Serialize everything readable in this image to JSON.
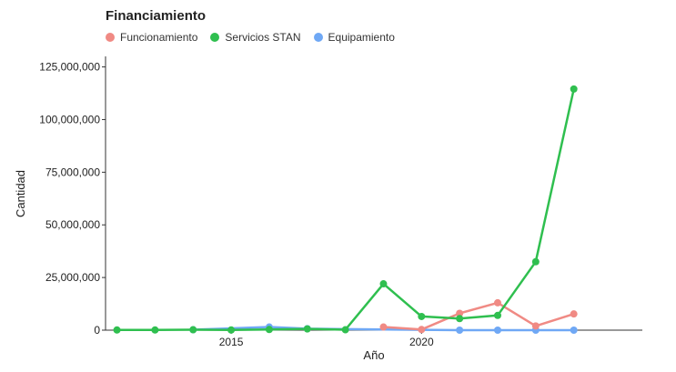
{
  "chart_data": {
    "type": "line",
    "title": "Financiamiento",
    "xlabel": "Año",
    "ylabel": "Cantidad",
    "xlim": [
      2011.7,
      2025.8
    ],
    "ylim": [
      0,
      130000000
    ],
    "x_ticks": [
      2015,
      2020
    ],
    "y_ticks": [
      0,
      25000000,
      50000000,
      75000000,
      100000000,
      125000000
    ],
    "y_tick_labels": [
      "0",
      "25,000,000",
      "50,000,000",
      "75,000,000",
      "100,000,000",
      "125,000,000"
    ],
    "grid": false,
    "legend_position": "top-left",
    "series": [
      {
        "name": "Funcionamiento",
        "color": "#f08a84",
        "points": [
          [
            2019,
            1500000
          ],
          [
            2020,
            300000
          ],
          [
            2021,
            8000000
          ],
          [
            2022,
            13000000
          ],
          [
            2023,
            2000000
          ],
          [
            2024,
            7700000
          ]
        ]
      },
      {
        "name": "Servicios STAN",
        "color": "#2fbf4f",
        "points": [
          [
            2012,
            100000
          ],
          [
            2013,
            100000
          ],
          [
            2014,
            200000
          ],
          [
            2015,
            100000
          ],
          [
            2016,
            300000
          ],
          [
            2017,
            600000
          ],
          [
            2018,
            200000
          ],
          [
            2019,
            22000000
          ],
          [
            2020,
            6500000
          ],
          [
            2021,
            5500000
          ],
          [
            2022,
            7000000
          ],
          [
            2023,
            32500000
          ],
          [
            2024,
            114500000
          ]
        ]
      },
      {
        "name": "Equipamiento",
        "color": "#6fa8f5",
        "points": [
          [
            2014,
            200000
          ],
          [
            2016,
            1500000
          ],
          [
            2017,
            700000
          ],
          [
            2021,
            0
          ],
          [
            2022,
            0
          ],
          [
            2023,
            0
          ],
          [
            2024,
            0
          ]
        ]
      }
    ]
  }
}
